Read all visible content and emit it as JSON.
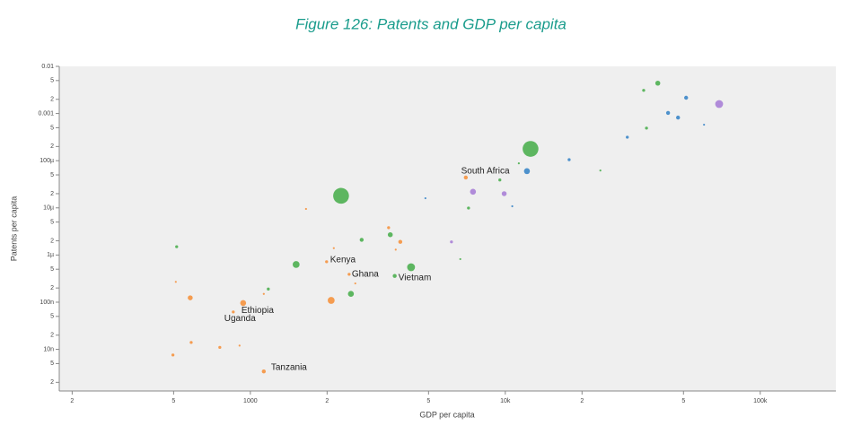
{
  "chart_data": {
    "type": "scatter",
    "title": "Figure 126: Patents and GDP per capita",
    "x_label": "GDP per capita",
    "y_label": "Patents per capita",
    "log_x": true,
    "log_y": true,
    "grid": false,
    "xlim": [
      178,
      198000
    ],
    "ylim": [
      1.31e-09,
      0.01
    ],
    "xticks": [
      {
        "value": 200,
        "label": "2"
      },
      {
        "value": 500,
        "label": "5"
      },
      1000,
      {
        "value": 2000,
        "label": "2"
      },
      {
        "value": 5000,
        "label": "5"
      },
      {
        "value": 10000,
        "label": "10k"
      },
      {
        "value": 20000,
        "label": "2"
      },
      {
        "value": 50000,
        "label": "5"
      },
      {
        "value": 100000,
        "label": "100k"
      }
    ],
    "yticks": [
      0.01,
      {
        "value": 0.005,
        "label": "5"
      },
      {
        "value": 0.002,
        "label": "2"
      },
      0.001,
      {
        "value": 0.0005,
        "label": "5"
      },
      {
        "value": 0.0002,
        "label": "2"
      },
      {
        "value": 0.0001,
        "label": "100µ"
      },
      {
        "value": 5e-05,
        "label": "5"
      },
      {
        "value": 2e-05,
        "label": "2"
      },
      {
        "value": 1e-05,
        "label": "10µ"
      },
      {
        "value": 5e-06,
        "label": "5"
      },
      {
        "value": 2e-06,
        "label": "2"
      },
      {
        "value": 1e-06,
        "label": "1µ"
      },
      {
        "value": 5e-07,
        "label": "5"
      },
      {
        "value": 2e-07,
        "label": "2"
      },
      {
        "value": 1e-07,
        "label": "100n"
      },
      {
        "value": 5e-08,
        "label": "5"
      },
      {
        "value": 2e-08,
        "label": "2"
      },
      {
        "value": 1e-08,
        "label": "10n"
      },
      {
        "value": 5e-09,
        "label": "5"
      },
      {
        "value": 2e-09,
        "label": "2"
      }
    ],
    "series": [
      {
        "color": "#f5923e",
        "x": [
          497,
          586,
          759,
          907,
          1129,
          510,
          581,
          937,
          857,
          2075,
          1991,
          2440,
          2125,
          3874,
          3486,
          3717,
          7000,
          1653,
          2580,
          1129
        ],
        "values": [
          7.6e-09,
          1.4e-08,
          1.1e-08,
          1.2e-08,
          3.4e-09,
          2.7e-07,
          1.24e-07,
          9.6e-08,
          6.2e-08,
          1.09e-07,
          7.2e-07,
          3.9e-07,
          1.4e-06,
          1.9e-06,
          3.8e-06,
          1.3e-06,
          4.4e-05,
          9.5e-06,
          2.5e-07,
          1.5e-07
        ],
        "sizes": [
          1.5,
          1.5,
          1.5,
          1,
          2,
          1,
          2.5,
          3,
          1.5,
          3.5,
          1.5,
          1.5,
          1,
          2,
          1.5,
          1,
          2,
          1,
          1,
          1
        ]
      },
      {
        "color": "#4caf50",
        "x": [
          514,
          1512,
          1176,
          2480,
          2733,
          3539,
          3683,
          4270,
          2269,
          7174,
          9520,
          6660,
          12560,
          11300,
          23600,
          35800,
          34900,
          39650
        ],
        "values": [
          1.5e-06,
          6.3e-07,
          1.9e-07,
          1.5e-07,
          2.1e-06,
          2.7e-06,
          3.6e-07,
          5.5e-07,
          1.8e-05,
          9.9e-06,
          3.9e-05,
          8.2e-07,
          0.000178,
          8.8e-05,
          6.2e-05,
          0.00049,
          0.0031,
          0.0044
        ],
        "sizes": [
          1.5,
          3.5,
          1.5,
          3,
          2,
          2.5,
          2,
          4,
          8,
          1.5,
          1.5,
          1,
          8,
          1,
          1,
          1.5,
          1.5,
          2.5
        ]
      },
      {
        "color": "#3b86c8",
        "x": [
          4860,
          12160,
          17800,
          30100,
          43500,
          47600,
          51200,
          60200,
          10650
        ],
        "values": [
          1.6e-05,
          6e-05,
          0.000105,
          0.000315,
          0.00103,
          0.00082,
          0.00216,
          0.00058,
          1.08e-05
        ],
        "sizes": [
          1,
          3,
          1.5,
          1.5,
          2,
          2,
          2,
          1,
          1
        ]
      },
      {
        "color": "#a97fd6",
        "x": [
          7470,
          9900,
          69000,
          6150
        ],
        "values": [
          2.2e-05,
          2e-05,
          0.00159,
          1.9e-06
        ],
        "sizes": [
          3,
          2.5,
          4,
          1.5
        ]
      }
    ],
    "annotations": [
      {
        "text": "South Africa",
        "x": 6710,
        "y": 6e-05
      },
      {
        "text": "Kenya",
        "x": 2056,
        "y": 7.8e-07
      },
      {
        "text": "Ghana",
        "x": 2500,
        "y": 3.9e-07
      },
      {
        "text": "Vietnam",
        "x": 3810,
        "y": 3.3e-07
      },
      {
        "text": "Ethiopia",
        "x": 922,
        "y": 6.7e-08
      },
      {
        "text": "Uganda",
        "x": 790,
        "y": 4.5e-08
      },
      {
        "text": "Tanzania",
        "x": 1205,
        "y": 4.1e-09
      }
    ]
  }
}
